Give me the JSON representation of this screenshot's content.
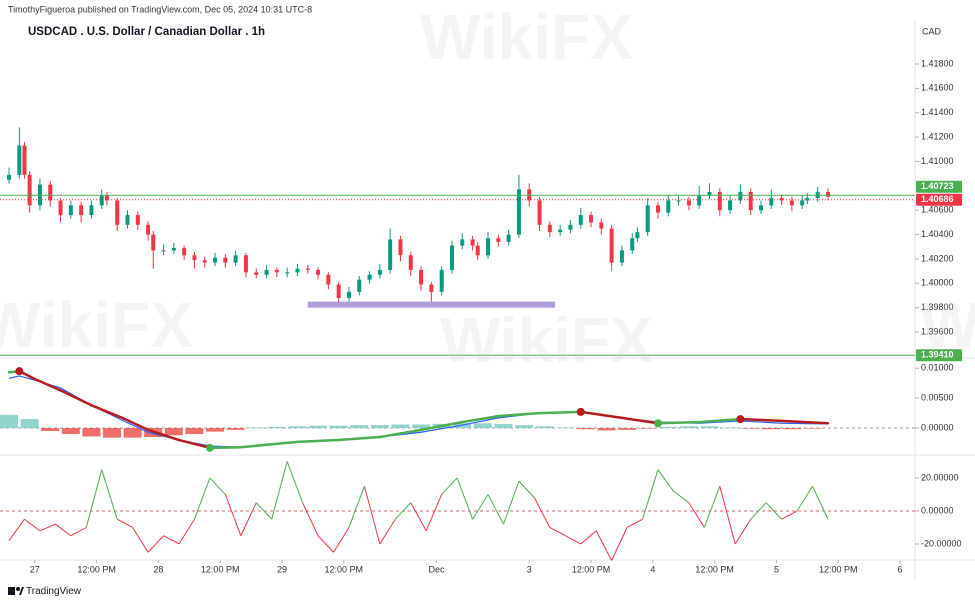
{
  "header": {
    "byline": "TimothyFigueroa published on TradingView.com, Dec 05, 2024 10:31 UTC-8",
    "title": "USDCAD . U.S. Dollar / Canadian Dollar . 1h"
  },
  "watermark": "WikiFX",
  "footer": {
    "brand": "TradingView"
  },
  "chart_data": [
    {
      "type": "candlestick",
      "currency": "CAD",
      "x": [
        -5,
        -3,
        -2,
        -1,
        1,
        3,
        5,
        7,
        9,
        11,
        13,
        14,
        16,
        18,
        20,
        22,
        23,
        25,
        27,
        29,
        31,
        33,
        35,
        37,
        39,
        41,
        43,
        45,
        47,
        49,
        51,
        53,
        55,
        57,
        59,
        61,
        63,
        65,
        67,
        69,
        71,
        73,
        75,
        77,
        79,
        81,
        83,
        85,
        86,
        88,
        90,
        92,
        94,
        96,
        98,
        100,
        102,
        104,
        106,
        108,
        110,
        112,
        114,
        116,
        117,
        119,
        121,
        123,
        125,
        127,
        129,
        131,
        133,
        135,
        137,
        139,
        141,
        143,
        145,
        147,
        149,
        150,
        152,
        154
      ],
      "open": [
        1.4085,
        1.4089,
        1.4113,
        1.4089,
        1.4064,
        1.4081,
        1.4068,
        1.4056,
        1.4064,
        1.4056,
        1.4064,
        1.4072,
        1.4068,
        1.4048,
        1.4056,
        1.4048,
        1.404,
        1.4027,
        1.4027,
        1.4029,
        1.4023,
        1.4019,
        1.4017,
        1.4021,
        1.4017,
        1.4023,
        1.4009,
        1.4007,
        1.4011,
        1.4009,
        1.4009,
        1.4012,
        1.4011,
        1.4007,
        1.3999,
        1.3988,
        1.3993,
        1.4003,
        1.4007,
        1.4011,
        1.4036,
        1.4023,
        1.4011,
        1.3999,
        1.3993,
        1.4011,
        1.4031,
        1.4036,
        1.4031,
        1.4023,
        1.4037,
        1.4034,
        1.404,
        1.4077,
        1.4068,
        1.4048,
        1.4042,
        1.4044,
        1.4048,
        1.4056,
        1.405,
        1.4045,
        1.4017,
        1.4027,
        1.4037,
        1.4042,
        1.4064,
        1.4058,
        1.4068,
        1.4068,
        1.4064,
        1.4072,
        1.4075,
        1.406,
        1.4068,
        1.4075,
        1.406,
        1.4064,
        1.407,
        1.4068,
        1.4064,
        1.4068,
        1.407,
        1.4075
      ],
      "high": [
        1.4095,
        1.4128,
        1.4116,
        1.4092,
        1.4086,
        1.4084,
        1.407,
        1.4068,
        1.4067,
        1.4068,
        1.4077,
        1.4075,
        1.407,
        1.406,
        1.4059,
        1.4051,
        1.4043,
        1.4032,
        1.4033,
        1.4031,
        1.4026,
        1.4022,
        1.4025,
        1.4024,
        1.4027,
        1.4025,
        1.4012,
        1.4015,
        1.4013,
        1.4013,
        1.4016,
        1.4015,
        1.4013,
        1.4009,
        1.4001,
        1.3997,
        1.4006,
        1.401,
        1.4016,
        1.4045,
        1.4039,
        1.4026,
        1.4014,
        1.4001,
        1.4014,
        1.4035,
        1.4041,
        1.4039,
        1.4034,
        1.4042,
        1.404,
        1.4044,
        1.4089,
        1.4082,
        1.4071,
        1.4051,
        1.4048,
        1.4052,
        1.4062,
        1.4059,
        1.4053,
        1.4048,
        1.4031,
        1.4041,
        1.4046,
        1.407,
        1.4067,
        1.4072,
        1.4072,
        1.4071,
        1.408,
        1.4082,
        1.4078,
        1.4072,
        1.4081,
        1.4078,
        1.4068,
        1.4077,
        1.4073,
        1.4071,
        1.4072,
        1.4074,
        1.4079,
        1.4078
      ],
      "low": [
        1.4082,
        1.4086,
        1.4086,
        1.4058,
        1.406,
        1.4063,
        1.405,
        1.4053,
        1.405,
        1.4053,
        1.4061,
        1.4064,
        1.4043,
        1.4045,
        1.4044,
        1.4035,
        1.4012,
        1.4023,
        1.4024,
        1.4019,
        1.4012,
        1.4013,
        1.4014,
        1.4013,
        1.4014,
        1.4005,
        1.4004,
        1.4004,
        1.4005,
        1.4005,
        1.4006,
        1.4008,
        1.4003,
        1.3995,
        1.3984,
        1.3985,
        1.399,
        1.4,
        1.4004,
        1.4008,
        1.4018,
        1.4006,
        1.3994,
        1.3985,
        1.399,
        1.4008,
        1.4028,
        1.4027,
        1.4019,
        1.402,
        1.403,
        1.4031,
        1.4037,
        1.4063,
        1.4043,
        1.4038,
        1.4039,
        1.4041,
        1.4045,
        1.4046,
        1.404,
        1.401,
        1.4014,
        1.4024,
        1.4034,
        1.4039,
        1.4053,
        1.4055,
        1.4064,
        1.406,
        1.4061,
        1.4069,
        1.4055,
        1.4057,
        1.4065,
        1.4056,
        1.4057,
        1.4061,
        1.4064,
        1.4059,
        1.4061,
        1.4065,
        1.4067,
        1.4068
      ],
      "close": [
        1.4089,
        1.4113,
        1.4089,
        1.4064,
        1.4081,
        1.4068,
        1.4056,
        1.4064,
        1.4056,
        1.4064,
        1.4072,
        1.4068,
        1.4048,
        1.4056,
        1.4048,
        1.404,
        1.4027,
        1.4027,
        1.4029,
        1.4023,
        1.4019,
        1.4017,
        1.4021,
        1.4017,
        1.4023,
        1.4009,
        1.4007,
        1.4011,
        1.4009,
        1.4009,
        1.4012,
        1.4011,
        1.4007,
        1.3999,
        1.3988,
        1.3993,
        1.4003,
        1.4007,
        1.4011,
        1.4036,
        1.4023,
        1.4011,
        1.3999,
        1.3993,
        1.4011,
        1.4031,
        1.4036,
        1.4031,
        1.4023,
        1.4037,
        1.4034,
        1.404,
        1.4077,
        1.4068,
        1.4048,
        1.4042,
        1.4044,
        1.4048,
        1.4056,
        1.405,
        1.4045,
        1.4017,
        1.4027,
        1.4037,
        1.4042,
        1.4064,
        1.4058,
        1.4068,
        1.4068,
        1.4064,
        1.4072,
        1.4075,
        1.406,
        1.4068,
        1.4075,
        1.406,
        1.4064,
        1.407,
        1.4068,
        1.4064,
        1.4068,
        1.407,
        1.4075,
        1.4071
      ],
      "up_color": "#089981",
      "down_color": "#f23645",
      "ylim": [
        1.39387,
        1.42161
      ],
      "yticks": [
        {
          "value": 1.418,
          "label": "1.41800"
        },
        {
          "value": 1.416,
          "label": "1.41600"
        },
        {
          "value": 1.414,
          "label": "1.41400"
        },
        {
          "value": 1.412,
          "label": "1.41200"
        },
        {
          "value": 1.41,
          "label": "1.41000"
        },
        {
          "value": 1.406,
          "label": "1.40600"
        },
        {
          "value": 1.404,
          "label": "1.40400"
        },
        {
          "value": 1.402,
          "label": "1.40200"
        },
        {
          "value": 1.4,
          "label": "1.40000"
        },
        {
          "value": 1.398,
          "label": "1.39800"
        },
        {
          "value": 1.396,
          "label": "1.39600"
        }
      ],
      "levels": [
        {
          "value": 1.40723,
          "color": "#4caf50",
          "style": "solid"
        },
        {
          "value": 1.40686,
          "color": "#f23645",
          "style": "dotted"
        },
        {
          "value": 1.3941,
          "label": "1.39410",
          "color": "#4caf50",
          "style": "solid"
        }
      ],
      "zone": {
        "x": [
          53,
          101
        ],
        "y": [
          1.398,
          1.3985
        ],
        "color": "#b39ddb"
      }
    },
    {
      "type": "macd",
      "x": [
        -5,
        -3,
        0,
        5,
        11,
        17,
        22,
        28,
        34,
        40,
        46,
        51,
        59,
        67,
        75,
        83,
        90,
        98,
        106,
        114,
        121,
        129,
        137,
        145,
        154
      ],
      "series": [
        {
          "color": "#2962ff",
          "values": [
            0.0083,
            0.0087,
            0.008,
            0.0067,
            0.0038,
            0.0013,
            -0.0007,
            -0.002,
            -0.003,
            -0.0032,
            -0.0028,
            -0.0023,
            -0.002,
            -0.0015,
            -0.0007,
            0.0005,
            0.0017,
            0.0025,
            0.0028,
            0.0017,
            0.001,
            0.0008,
            0.0012,
            0.0008,
            0.0007
          ]
        },
        {
          "up_color": "#4caf50",
          "down_color": "#b71c1c",
          "values": [
            0.0093,
            0.0095,
            0.0082,
            0.0063,
            0.0038,
            0.0017,
            -0.0003,
            -0.002,
            -0.0033,
            -0.0032,
            -0.0027,
            -0.0023,
            -0.002,
            -0.0015,
            -0.0003,
            0.001,
            0.002,
            0.0025,
            0.0027,
            0.0017,
            0.0008,
            0.001,
            0.0015,
            0.0012,
            0.0008
          ]
        }
      ],
      "histogram": {
        "x": [
          -5,
          -1,
          3,
          7,
          11,
          15,
          19,
          23,
          27,
          31,
          35,
          39,
          43,
          47,
          51,
          55,
          59,
          63,
          67,
          71,
          75,
          79,
          83,
          87,
          91,
          95,
          99,
          103,
          107,
          111,
          115,
          119,
          123,
          127,
          131,
          135,
          139,
          143,
          147,
          151
        ],
        "values": [
          0.0022,
          0.0015,
          -0.0005,
          -0.001,
          -0.0014,
          -0.0016,
          -0.0016,
          -0.0015,
          -0.0012,
          -0.001,
          -0.0006,
          -0.0003,
          0.0001,
          0.0002,
          0.0003,
          0.0004,
          0.0004,
          0.0005,
          0.0005,
          0.0006,
          0.0006,
          0.0007,
          0.0008,
          0.0008,
          0.0007,
          0.0005,
          0.0003,
          0.0001,
          -0.0002,
          -0.0004,
          -0.0003,
          -0.0001,
          0.0002,
          0.0003,
          0.0003,
          0.0001,
          -0.0001,
          -0.0002,
          -0.0002,
          -0.0001
        ],
        "up_color": "#80cbc4",
        "down_color": "#ef5350"
      },
      "ylim": [
        -0.0045,
        0.0117
      ],
      "yticks": [
        {
          "value": 0.01,
          "label": "0.01000"
        },
        {
          "value": 0.005,
          "label": "0.00500"
        },
        {
          "value": 0,
          "label": "0.00000"
        }
      ]
    },
    {
      "type": "line",
      "x": [
        -5,
        -2,
        1,
        4,
        7,
        10,
        13,
        16,
        19,
        22,
        25,
        28,
        31,
        34,
        37,
        40,
        43,
        46,
        49,
        52,
        55,
        58,
        61,
        64,
        67,
        70,
        73,
        76,
        79,
        82,
        85,
        88,
        91,
        94,
        97,
        100,
        103,
        106,
        109,
        112,
        115,
        118,
        121,
        124,
        127,
        130,
        133,
        136,
        139,
        142,
        145,
        148,
        151,
        154
      ],
      "values": [
        -18,
        -5,
        -12,
        -8,
        -15,
        -10,
        25,
        -5,
        -10,
        -25,
        -15,
        -20,
        -5,
        20,
        10,
        -15,
        5,
        -5,
        30,
        5,
        -15,
        -25,
        -10,
        15,
        -20,
        -5,
        5,
        -12,
        10,
        20,
        -5,
        10,
        -8,
        18,
        8,
        -10,
        -15,
        -20,
        -12,
        -30,
        -10,
        -5,
        25,
        12,
        5,
        -10,
        15,
        -20,
        -5,
        5,
        -5,
        0,
        15,
        -5
      ],
      "up_color": "#4caf50",
      "down_color": "#f23645",
      "ylim": [
        -29.7,
        33.9
      ],
      "yticks": [
        {
          "value": 20,
          "label": "20.00000"
        },
        {
          "value": 0,
          "label": "0.00000"
        },
        {
          "value": -20,
          "label": "-20.00000"
        }
      ],
      "xlim": [
        -5.2,
        170.9
      ],
      "xticks": [
        {
          "value": 0,
          "label": "27"
        },
        {
          "value": 12,
          "label": "12:00 PM"
        },
        {
          "value": 24,
          "label": "28"
        },
        {
          "value": 36,
          "label": "12:00 PM"
        },
        {
          "value": 48,
          "label": "29"
        },
        {
          "value": 60,
          "label": "12:00 PM"
        },
        {
          "value": 78,
          "label": "Dec"
        },
        {
          "value": 96,
          "label": "3"
        },
        {
          "value": 108,
          "label": "12:00 PM"
        },
        {
          "value": 120,
          "label": "4"
        },
        {
          "value": 132,
          "label": "12:00 PM"
        },
        {
          "value": 144,
          "label": "5"
        },
        {
          "value": 156,
          "label": "12:00 PM"
        },
        {
          "value": 168,
          "label": "6"
        }
      ]
    }
  ]
}
